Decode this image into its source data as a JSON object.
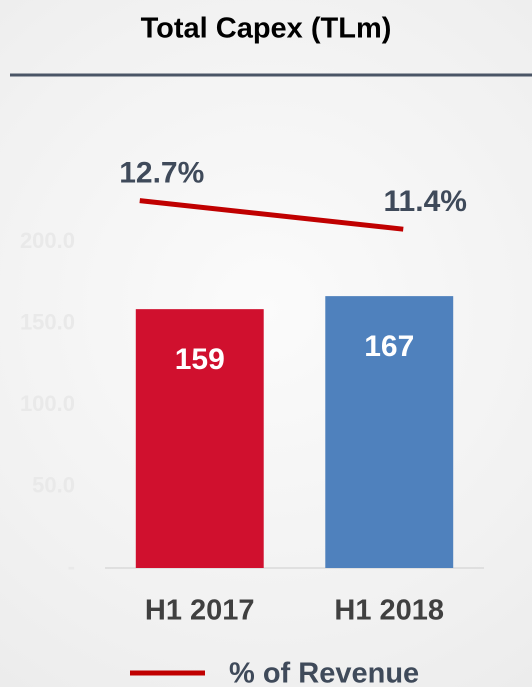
{
  "chart_data": {
    "type": "bar",
    "title": "Total Capex (TLm)",
    "categories": [
      "H1 2017",
      "H1 2018"
    ],
    "series": [
      {
        "name": "Total Capex",
        "type": "bar",
        "colors": [
          "#d0102e",
          "#4f81bd"
        ],
        "values": [
          159,
          167
        ]
      },
      {
        "name": "% of Revenue",
        "type": "line",
        "axis": "y2",
        "color": "#c00000",
        "values": [
          12.7,
          11.4
        ],
        "value_labels": [
          "12.7%",
          "11.4%"
        ]
      }
    ],
    "ylim": [
      0,
      250
    ],
    "yticks": [
      {
        "value": 0,
        "label": "-"
      },
      {
        "value": 50,
        "label": "50.0"
      },
      {
        "value": 100,
        "label": "100.0"
      },
      {
        "value": 150,
        "label": "150.0"
      },
      {
        "value": 200,
        "label": "200.0"
      }
    ],
    "y2lim": [
      -4,
      14.5
    ]
  }
}
